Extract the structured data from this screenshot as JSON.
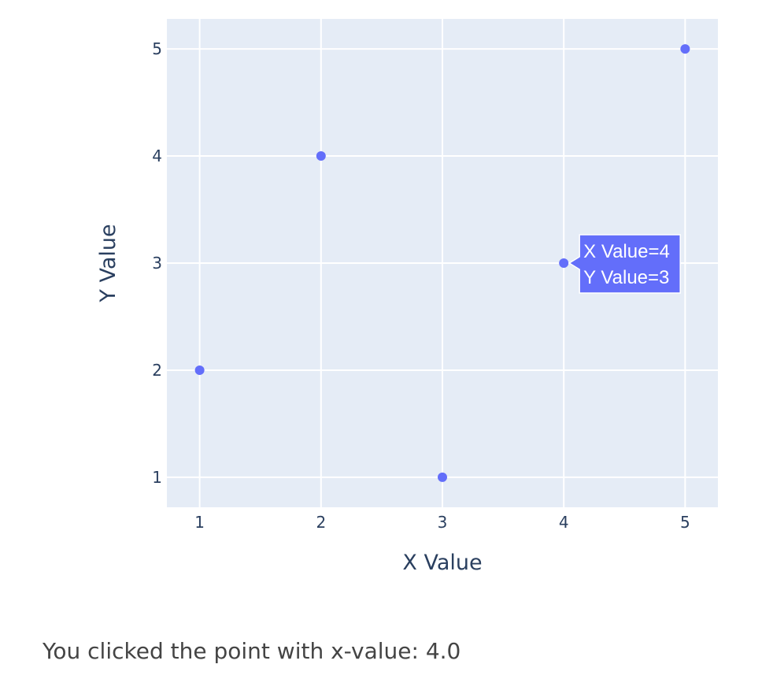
{
  "chart_data": {
    "type": "scatter",
    "x": [
      1,
      2,
      3,
      4,
      5
    ],
    "y": [
      2,
      4,
      1,
      3,
      5
    ],
    "xlabel": "X Value",
    "ylabel": "Y Value",
    "xlim": [
      0.73,
      5.27
    ],
    "ylim": [
      0.72,
      5.28
    ],
    "xticks": [
      1,
      2,
      3,
      4,
      5
    ],
    "yticks": [
      1,
      2,
      3,
      4,
      5
    ],
    "grid": true,
    "colors": {
      "plot_background": "#e5ecf6",
      "grid": "#ffffff",
      "marker": "#636efa",
      "text": "#2a3f5f"
    },
    "hover": {
      "point_index": 3,
      "lines": [
        "X Value=4",
        "Y Value=3"
      ]
    }
  },
  "status_text": "You clicked the point with x-value: 4.0"
}
